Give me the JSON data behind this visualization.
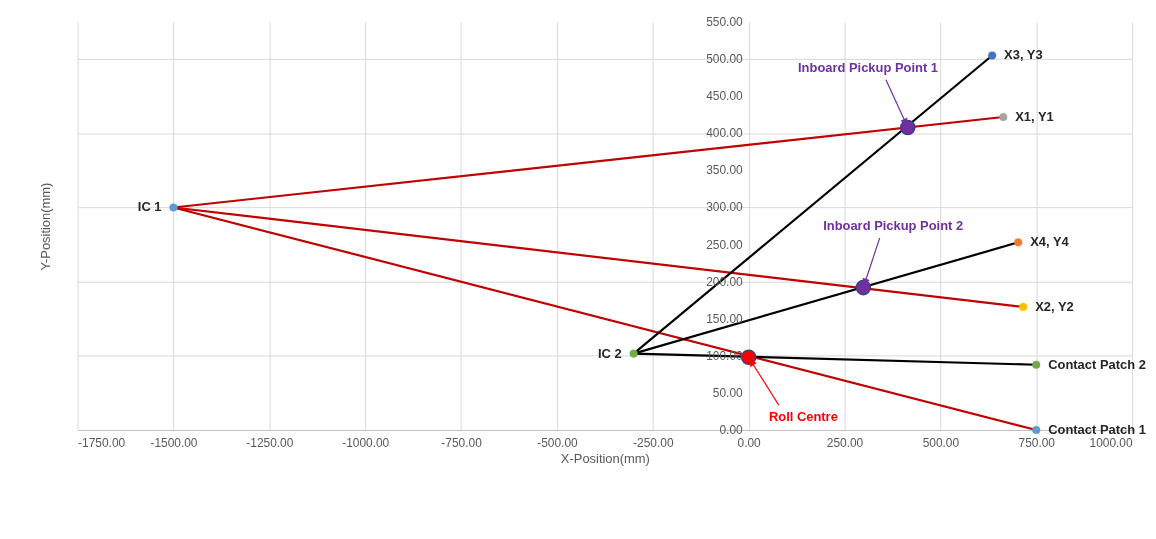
{
  "chart_data": {
    "type": "line",
    "xlabel": "X-Position(mm)",
    "ylabel": "Y-Position(mm)",
    "xlim": [
      -1750,
      1000
    ],
    "xticks": [
      {
        "value": -1750,
        "label": "-1750.00"
      },
      {
        "value": -1500,
        "label": "-1500.00"
      },
      {
        "value": -1250,
        "label": "-1250.00"
      },
      {
        "value": -1000,
        "label": "-1000.00"
      },
      {
        "value": -750,
        "label": "-750.00"
      },
      {
        "value": -500,
        "label": "-500.00"
      },
      {
        "value": -250,
        "label": "-250.00"
      },
      {
        "value": 0,
        "label": "0.00"
      },
      {
        "value": 250,
        "label": "250.00"
      },
      {
        "value": 500,
        "label": "500.00"
      },
      {
        "value": 750,
        "label": "750.00"
      },
      {
        "value": 1000,
        "label": "1000.00"
      }
    ],
    "ylim": [
      0,
      550
    ],
    "yticks": [
      {
        "value": 0,
        "label": "0.00"
      },
      {
        "value": 50,
        "label": "50.00"
      },
      {
        "value": 100,
        "label": "100.00"
      },
      {
        "value": 150,
        "label": "150.00"
      },
      {
        "value": 200,
        "label": "200.00"
      },
      {
        "value": 250,
        "label": "250.00"
      },
      {
        "value": 300,
        "label": "300.00"
      },
      {
        "value": 350,
        "label": "350.00"
      },
      {
        "value": 400,
        "label": "400.00"
      },
      {
        "value": 450,
        "label": "450.00"
      },
      {
        "value": 500,
        "label": "500.00"
      },
      {
        "value": 550,
        "label": "550.00"
      }
    ],
    "grid": true,
    "legend": false,
    "series": [
      {
        "color": "#c00000",
        "x": [
          -1500,
          664
        ],
        "values": [
          300,
          422
        ]
      },
      {
        "color": "#c00000",
        "x": [
          -1500,
          716
        ],
        "values": [
          300,
          166
        ]
      },
      {
        "color": "#c00000",
        "x": [
          -1500,
          750
        ],
        "values": [
          300,
          0
        ]
      },
      {
        "color": "#000000",
        "x": [
          -300,
          635
        ],
        "values": [
          103,
          505
        ]
      },
      {
        "color": "#000000",
        "x": [
          -300,
          703
        ],
        "values": [
          103,
          253
        ]
      },
      {
        "color": "#000000",
        "x": [
          -300,
          750
        ],
        "values": [
          103,
          88
        ]
      },
      {
        "type": "scatter",
        "name": "IC 1",
        "color": "#5b9bd5",
        "x": [
          -1500
        ],
        "values": [
          300
        ]
      },
      {
        "type": "scatter",
        "name": "IC 2",
        "color": "#70ad47",
        "x": [
          -300
        ],
        "values": [
          103
        ]
      },
      {
        "type": "scatter",
        "name": "X1, Y1",
        "color": "#a5a5a5",
        "x": [
          664
        ],
        "values": [
          422
        ]
      },
      {
        "type": "scatter",
        "name": "X2, Y2",
        "color": "#ffc000",
        "x": [
          716
        ],
        "values": [
          166
        ]
      },
      {
        "type": "scatter",
        "name": "X3, Y3",
        "color": "#4472c4",
        "x": [
          635
        ],
        "values": [
          505
        ]
      },
      {
        "type": "scatter",
        "name": "X4, Y4",
        "color": "#ed7d31",
        "x": [
          703
        ],
        "values": [
          253
        ]
      },
      {
        "type": "scatter",
        "name": "Contact Patch 1",
        "color": "#5b9bd5",
        "x": [
          750
        ],
        "values": [
          0
        ]
      },
      {
        "type": "scatter",
        "name": "Contact Patch 2",
        "color": "#70ad47",
        "x": [
          750
        ],
        "values": [
          88
        ]
      },
      {
        "type": "scatter",
        "color": "#7030a0",
        "x": [
          415
        ],
        "values": [
          408
        ]
      },
      {
        "type": "scatter",
        "color": "#7030a0",
        "x": [
          299
        ],
        "values": [
          192
        ]
      },
      {
        "type": "scatter",
        "color": "#ff0000",
        "x": [
          0
        ],
        "values": [
          98
        ]
      }
    ],
    "annotations": [
      {
        "text": "Inboard Pickup Point 1",
        "x": 415,
        "y": 408
      },
      {
        "text": "Inboard Pickup Point 2",
        "x": 299,
        "y": 192
      },
      {
        "text": "Roll Centre",
        "x": 0,
        "y": 98
      }
    ]
  }
}
